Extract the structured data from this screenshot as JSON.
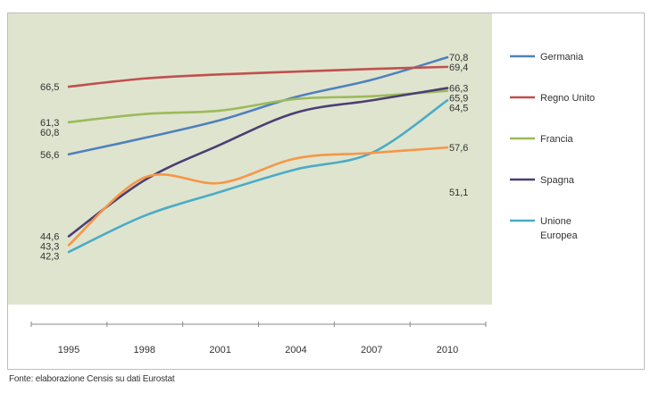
{
  "chart_data": {
    "type": "line",
    "x": [
      "1995",
      "1998",
      "2001",
      "2004",
      "2007",
      "2010"
    ],
    "series": [
      {
        "name": "Germania",
        "color": "#4f81bd",
        "values": [
          56.6,
          59.0,
          61.6,
          65.0,
          67.5,
          70.8
        ]
      },
      {
        "name": "Regno Unito",
        "color": "#c0504d",
        "values": [
          66.5,
          67.7,
          68.3,
          68.7,
          69.1,
          69.4
        ]
      },
      {
        "name": "Francia",
        "color": "#9bbb59",
        "values": [
          61.3,
          62.5,
          63.0,
          64.7,
          65.1,
          65.9
        ]
      },
      {
        "name": "Spagna",
        "color": "#4b3f72",
        "values": [
          44.6,
          52.8,
          58.0,
          62.7,
          64.5,
          66.3
        ]
      },
      {
        "name": "Unione Europea",
        "color": "#4bacc6",
        "values": [
          42.3,
          47.6,
          51.1,
          54.4,
          56.8,
          64.5
        ]
      },
      {
        "name": "",
        "color": "#f79646",
        "values": [
          43.3,
          53.2,
          52.4,
          56.0,
          56.8,
          57.6
        ]
      }
    ],
    "value_labels": [
      {
        "text": "70,8",
        "side": "right",
        "value": 70.8
      },
      {
        "text": "69,4",
        "side": "right",
        "value": 69.4
      },
      {
        "text": "66,3",
        "side": "right",
        "value": 66.3
      },
      {
        "text": "65,9",
        "side": "right",
        "value": 65.9
      },
      {
        "text": "64,5",
        "side": "right",
        "value": 64.5
      },
      {
        "text": "57,6",
        "side": "right",
        "value": 57.6
      },
      {
        "text": "51,1",
        "side": "right",
        "value": 51.1
      },
      {
        "text": "66,5",
        "side": "left",
        "value": 66.5
      },
      {
        "text": "61,3",
        "side": "left",
        "value": 61.3
      },
      {
        "text": "60,8",
        "side": "left",
        "value": 60.8
      },
      {
        "text": "56,6",
        "side": "left",
        "value": 56.6
      },
      {
        "text": "44,6",
        "side": "left",
        "value": 44.6
      },
      {
        "text": "43,3",
        "side": "left",
        "value": 43.3
      },
      {
        "text": "42,3",
        "side": "left",
        "value": 42.3
      }
    ],
    "ylim": [
      38,
      72
    ],
    "legend": "right",
    "plot_background": "#dfe4cf"
  },
  "source_note": "Fonte: elaborazione Censis su dati Eurostat"
}
